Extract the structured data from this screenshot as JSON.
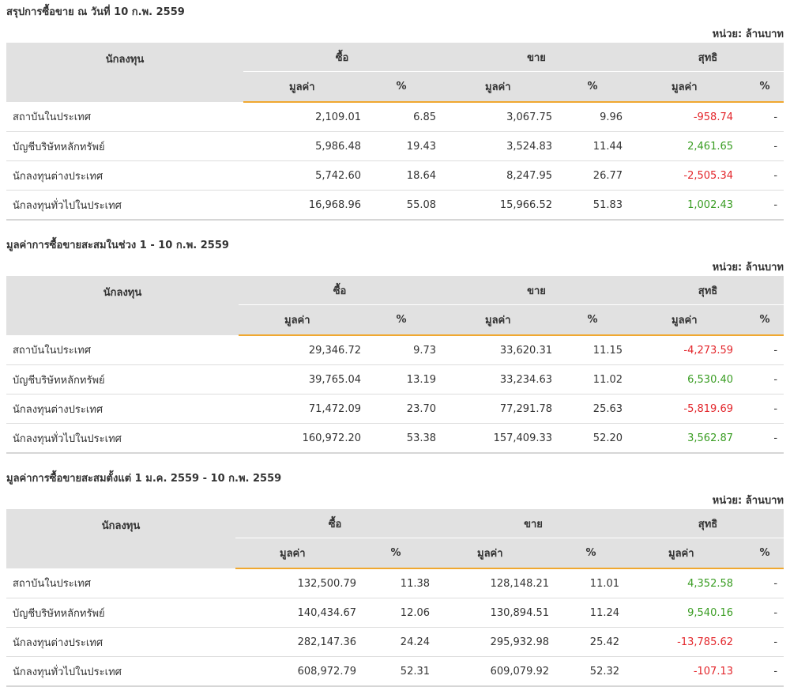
{
  "labels": {
    "investor": "นักลงทุน",
    "buy": "ซื้อ",
    "sell": "ขาย",
    "net": "สุทธิ",
    "value": "มูลค่า",
    "percent": "%",
    "unit": "หน่วย: ล้านบาท"
  },
  "colors": {
    "negative": "#e3262b",
    "positive": "#3a9d23",
    "accent": "#f0a830",
    "header_bg": "#e1e1e1"
  },
  "sections": [
    {
      "title": "สรุปการซื้อขาย ณ วันที่ 10 ก.พ. 2559",
      "rows": [
        {
          "name": "สถาบันในประเทศ",
          "buy_value": "2,109.01",
          "buy_pct": "6.85",
          "sell_value": "3,067.75",
          "sell_pct": "9.96",
          "net_value": "-958.74",
          "net_pct": "-"
        },
        {
          "name": "บัญชีบริษัทหลักทรัพย์",
          "buy_value": "5,986.48",
          "buy_pct": "19.43",
          "sell_value": "3,524.83",
          "sell_pct": "11.44",
          "net_value": "2,461.65",
          "net_pct": "-"
        },
        {
          "name": "นักลงทุนต่างประเทศ",
          "buy_value": "5,742.60",
          "buy_pct": "18.64",
          "sell_value": "8,247.95",
          "sell_pct": "26.77",
          "net_value": "-2,505.34",
          "net_pct": "-"
        },
        {
          "name": "นักลงทุนทั่วไปในประเทศ",
          "buy_value": "16,968.96",
          "buy_pct": "55.08",
          "sell_value": "15,966.52",
          "sell_pct": "51.83",
          "net_value": "1,002.43",
          "net_pct": "-"
        }
      ]
    },
    {
      "title": "มูลค่าการซื้อขายสะสมในช่วง 1 - 10 ก.พ. 2559",
      "rows": [
        {
          "name": "สถาบันในประเทศ",
          "buy_value": "29,346.72",
          "buy_pct": "9.73",
          "sell_value": "33,620.31",
          "sell_pct": "11.15",
          "net_value": "-4,273.59",
          "net_pct": "-"
        },
        {
          "name": "บัญชีบริษัทหลักทรัพย์",
          "buy_value": "39,765.04",
          "buy_pct": "13.19",
          "sell_value": "33,234.63",
          "sell_pct": "11.02",
          "net_value": "6,530.40",
          "net_pct": "-"
        },
        {
          "name": "นักลงทุนต่างประเทศ",
          "buy_value": "71,472.09",
          "buy_pct": "23.70",
          "sell_value": "77,291.78",
          "sell_pct": "25.63",
          "net_value": "-5,819.69",
          "net_pct": "-"
        },
        {
          "name": "นักลงทุนทั่วไปในประเทศ",
          "buy_value": "160,972.20",
          "buy_pct": "53.38",
          "sell_value": "157,409.33",
          "sell_pct": "52.20",
          "net_value": "3,562.87",
          "net_pct": "-"
        }
      ]
    },
    {
      "title": "มูลค่าการซื้อขายสะสมตั้งแต่ 1 ม.ค. 2559 - 10 ก.พ. 2559",
      "rows": [
        {
          "name": "สถาบันในประเทศ",
          "buy_value": "132,500.79",
          "buy_pct": "11.38",
          "sell_value": "128,148.21",
          "sell_pct": "11.01",
          "net_value": "4,352.58",
          "net_pct": "-"
        },
        {
          "name": "บัญชีบริษัทหลักทรัพย์",
          "buy_value": "140,434.67",
          "buy_pct": "12.06",
          "sell_value": "130,894.51",
          "sell_pct": "11.24",
          "net_value": "9,540.16",
          "net_pct": "-"
        },
        {
          "name": "นักลงทุนต่างประเทศ",
          "buy_value": "282,147.36",
          "buy_pct": "24.24",
          "sell_value": "295,932.98",
          "sell_pct": "25.42",
          "net_value": "-13,785.62",
          "net_pct": "-"
        },
        {
          "name": "นักลงทุนทั่วไปในประเทศ",
          "buy_value": "608,972.79",
          "buy_pct": "52.31",
          "sell_value": "609,079.92",
          "sell_pct": "52.32",
          "net_value": "-107.13",
          "net_pct": "-"
        }
      ]
    }
  ]
}
